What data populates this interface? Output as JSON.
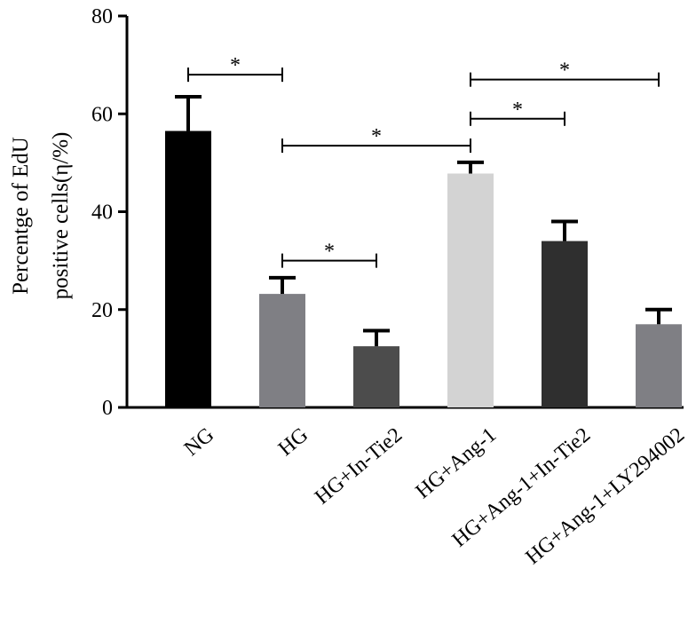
{
  "chart_data": {
    "type": "bar",
    "title": "",
    "xlabel": "",
    "ylabel_lines": [
      "Percentge of EdU",
      "positive cells(η/%)"
    ],
    "ylim": [
      0,
      80
    ],
    "yticks": [
      0,
      20,
      40,
      60,
      80
    ],
    "categories": [
      "NG",
      "HG",
      "HG+In-Tie2",
      "HG+Ang-1",
      "HG+Ang-1+In-Tie2",
      "HG+Ang-1+LY294002"
    ],
    "values": [
      56.5,
      23.2,
      12.5,
      47.8,
      34.0,
      17.0
    ],
    "errors": [
      7.0,
      3.3,
      3.2,
      2.3,
      4.0,
      3.0
    ],
    "colors": [
      "#000000",
      "#7f7f84",
      "#4c4c4c",
      "#d3d3d3",
      "#2f2f2f",
      "#7f7f84"
    ],
    "grid": false,
    "legend": "none",
    "significance": [
      {
        "from": 0,
        "to": 1,
        "y": 68,
        "label": "*"
      },
      {
        "from": 1,
        "to": 2,
        "y": 30,
        "label": "*"
      },
      {
        "from": 1,
        "to": 3,
        "y": 53.5,
        "label": "*"
      },
      {
        "from": 3,
        "to": 4,
        "y": 59,
        "label": "*"
      },
      {
        "from": 3,
        "to": 5,
        "y": 67,
        "label": "*"
      }
    ]
  }
}
